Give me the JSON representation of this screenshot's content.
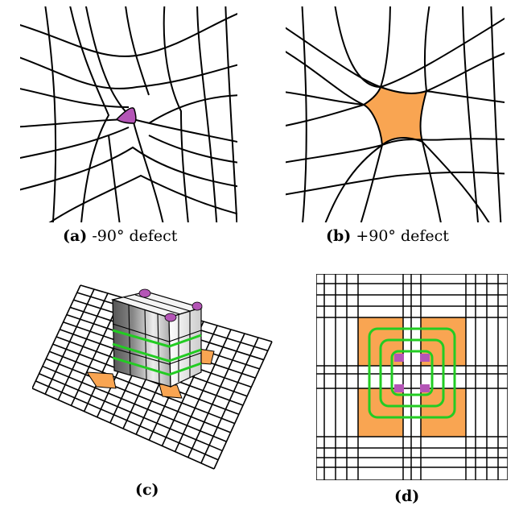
{
  "panels": {
    "a": {
      "tag": "(a)",
      "text": "-90° defect",
      "defect_color": "#b455b6"
    },
    "b": {
      "tag": "(b)",
      "text": "+90° defect",
      "defect_color": "#f9a552"
    },
    "c": {
      "tag": "(c)"
    },
    "d": {
      "tag": "(d)"
    }
  },
  "colors": {
    "grid": "#000000",
    "neg_defect": "#b455b6",
    "pos_defect": "#f9a552",
    "loop": "#22cc22"
  }
}
